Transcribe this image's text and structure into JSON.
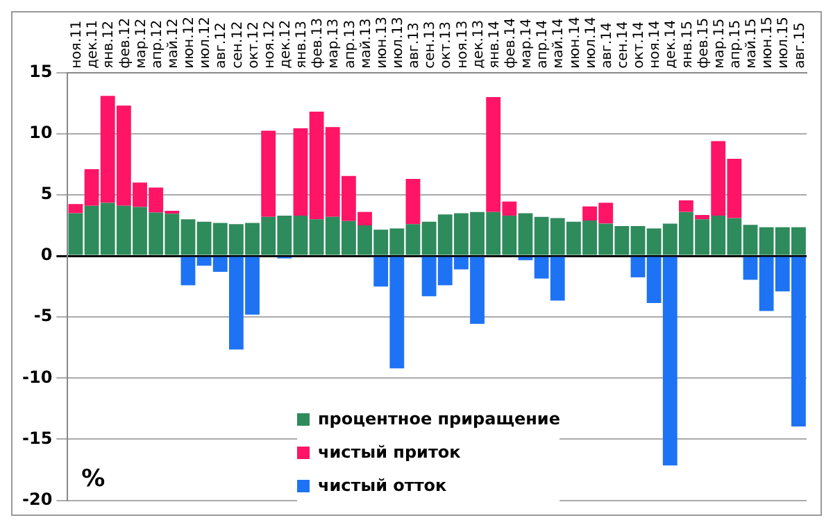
{
  "chart_data": {
    "type": "bar",
    "stacked": true,
    "categories": [
      "ноя.11",
      "дек.11",
      "янв.12",
      "фев.12",
      "мар.12",
      "апр.12",
      "май.12",
      "июн.12",
      "июл.12",
      "авг.12",
      "сен.12",
      "окт.12",
      "ноя.12",
      "дек.12",
      "янв.13",
      "фев.13",
      "мар.13",
      "апр.13",
      "май.13",
      "июн.13",
      "июл.13",
      "авг.13",
      "сен.13",
      "окт.13",
      "ноя.13",
      "дек.13",
      "янв.14",
      "фев.14",
      "мар.14",
      "апр.14",
      "май.14",
      "июн.14",
      "июл.14",
      "авг.14",
      "сен.14",
      "окт.14",
      "ноя.14",
      "дек.14",
      "янв.15",
      "фев.15",
      "мар.15",
      "апр.15",
      "май.15",
      "июн.15",
      "июл.15",
      "авг.15"
    ],
    "series": [
      {
        "name": "процентное приращение",
        "color": "#2e8b5c",
        "values": [
          3.5,
          4.1,
          4.35,
          4.1,
          4.0,
          3.55,
          3.45,
          3.0,
          2.8,
          2.7,
          2.6,
          2.7,
          3.2,
          3.3,
          3.3,
          3.0,
          3.2,
          2.85,
          2.5,
          2.15,
          2.25,
          2.6,
          2.8,
          3.4,
          3.5,
          3.6,
          3.6,
          3.3,
          3.5,
          3.2,
          3.1,
          2.8,
          2.9,
          2.65,
          2.45,
          2.45,
          2.25,
          2.65,
          3.6,
          3.0,
          3.3,
          3.1,
          2.55,
          2.35,
          2.35,
          2.35
        ]
      },
      {
        "name": "чистый отток",
        "color": "#1e73f5",
        "values": [
          null,
          null,
          null,
          null,
          null,
          null,
          null,
          -2.4,
          -0.8,
          -1.3,
          -7.65,
          -4.8,
          null,
          -0.2,
          null,
          null,
          null,
          null,
          null,
          -2.5,
          -9.2,
          null,
          -3.3,
          -2.4,
          -1.1,
          -5.55,
          null,
          null,
          -0.35,
          -1.85,
          -3.65,
          null,
          null,
          null,
          null,
          -1.75,
          -3.85,
          -17.15,
          null,
          null,
          null,
          null,
          -1.95,
          -4.5,
          -2.9,
          -13.95
        ]
      },
      {
        "name": "чистый приток",
        "color": "#ff1466",
        "values": [
          0.75,
          3.0,
          8.75,
          8.2,
          2.0,
          2.05,
          0.25,
          null,
          null,
          null,
          null,
          null,
          7.05,
          null,
          7.15,
          8.8,
          7.35,
          3.7,
          1.1,
          null,
          null,
          3.7,
          null,
          null,
          null,
          null,
          9.4,
          1.15,
          null,
          null,
          null,
          null,
          1.15,
          1.7,
          null,
          null,
          null,
          null,
          0.95,
          0.35,
          6.1,
          4.85,
          null,
          null,
          null,
          null
        ]
      }
    ],
    "ylim": [
      -20,
      15
    ],
    "yticks": [
      -20,
      -15,
      -10,
      -5,
      0,
      5,
      10,
      15
    ],
    "grid": "y",
    "legend": "bottom",
    "annotations": [
      "%"
    ]
  }
}
